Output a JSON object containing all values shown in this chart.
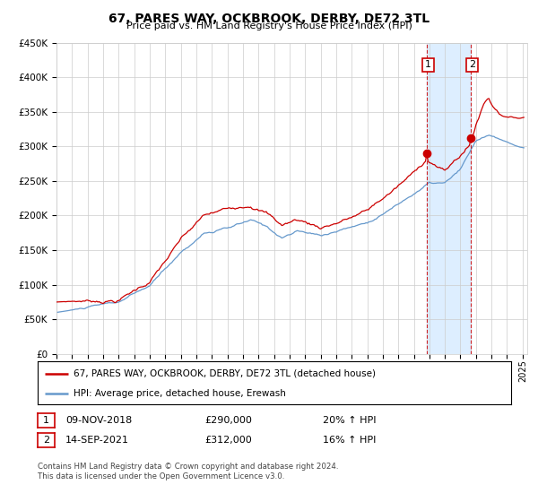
{
  "title": "67, PARES WAY, OCKBROOK, DERBY, DE72 3TL",
  "subtitle": "Price paid vs. HM Land Registry's House Price Index (HPI)",
  "legend_line1": "67, PARES WAY, OCKBROOK, DERBY, DE72 3TL (detached house)",
  "legend_line2": "HPI: Average price, detached house, Erewash",
  "footnote": "Contains HM Land Registry data © Crown copyright and database right 2024.\nThis data is licensed under the Open Government Licence v3.0.",
  "sale1_date": "09-NOV-2018",
  "sale1_price": "£290,000",
  "sale1_hpi": "20% ↑ HPI",
  "sale2_date": "14-SEP-2021",
  "sale2_price": "£312,000",
  "sale2_hpi": "16% ↑ HPI",
  "red_line_color": "#cc0000",
  "blue_line_color": "#6699cc",
  "shading_color": "#ddeeff",
  "grid_color": "#cccccc",
  "background_color": "#ffffff",
  "ylim": [
    0,
    450000
  ],
  "yticks": [
    0,
    50000,
    100000,
    150000,
    200000,
    250000,
    300000,
    350000,
    400000,
    450000
  ]
}
